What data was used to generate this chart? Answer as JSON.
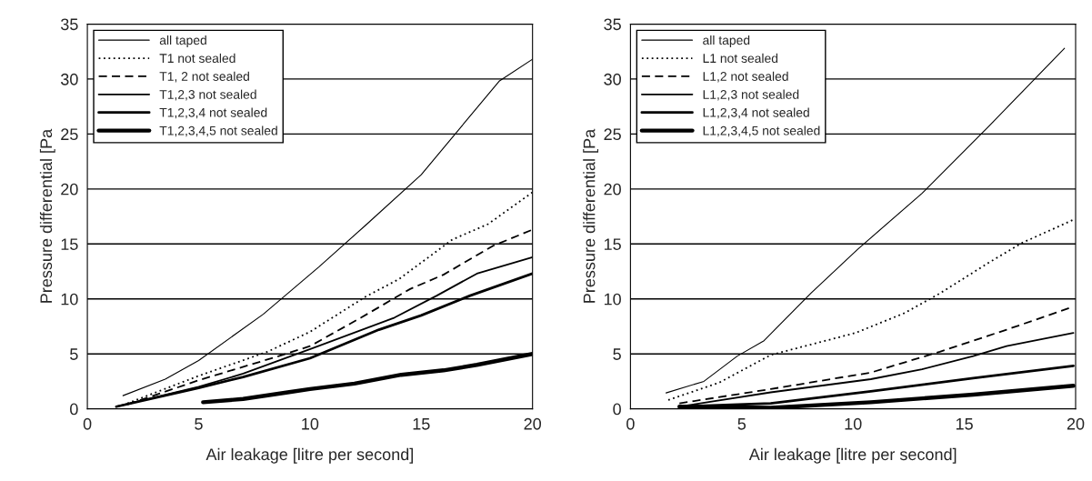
{
  "chart_data": [
    {
      "type": "line",
      "xlabel": "Air leakage [litre per second]",
      "ylabel": "Pressure differential [Pa",
      "xlim": [
        0,
        20
      ],
      "ylim": [
        0,
        35
      ],
      "xticks": [
        0,
        5,
        10,
        15,
        20
      ],
      "yticks": [
        0,
        5,
        10,
        15,
        20,
        25,
        30,
        35
      ],
      "grid": "y",
      "legend": "top left",
      "marker": "none",
      "series": [
        {
          "name": "all taped",
          "color": "#000000",
          "line_style": "solid",
          "x": [
            1.6,
            3.5,
            5,
            7.9,
            10.4,
            12.5,
            15,
            18.5,
            20
          ],
          "values": [
            1.2,
            2.7,
            4.4,
            8.6,
            12.9,
            16.7,
            21.3,
            29.8,
            31.8
          ]
        },
        {
          "name": "T1 not sealed",
          "color": "#000000",
          "line_style": "dotted",
          "x": [
            1.8,
            5,
            8.1,
            10,
            12.5,
            14,
            16.4,
            18,
            20
          ],
          "values": [
            0.5,
            3,
            5.2,
            7,
            10.2,
            11.8,
            15.4,
            16.8,
            19.7
          ]
        },
        {
          "name": "T1, 2 not sealed",
          "color": "#000000",
          "line_style": "dashed",
          "x": [
            1.8,
            5,
            8.6,
            10,
            12.3,
            14.5,
            16,
            18.2,
            20
          ],
          "values": [
            0.4,
            2.6,
            4.8,
            5.7,
            8.3,
            10.9,
            12.2,
            14.8,
            16.3
          ]
        },
        {
          "name": "T1,2,3 not sealed",
          "color": "#000000",
          "line_style": "solid",
          "x": [
            1.3,
            5,
            7,
            10.1,
            13.8,
            15.7,
            17.5,
            20
          ],
          "values": [
            0.2,
            2,
            3.2,
            5.5,
            8.3,
            10.3,
            12.3,
            13.8
          ]
        },
        {
          "name": "T1,2,3,4 not sealed",
          "color": "#000000",
          "line_style": "solid",
          "x": [
            1.3,
            5,
            7,
            10,
            13.1,
            15,
            17.2,
            20
          ],
          "values": [
            0.2,
            1.9,
            2.9,
            4.6,
            7.2,
            8.5,
            10.3,
            12.3
          ]
        },
        {
          "name": "T1,2,3,4,5 not sealed",
          "color": "#000000",
          "line_style": "solid",
          "x": [
            5.2,
            7,
            9,
            10,
            12,
            14.1,
            16,
            17.5,
            20
          ],
          "values": [
            0.6,
            0.9,
            1.5,
            1.8,
            2.3,
            3.1,
            3.5,
            4,
            5
          ]
        }
      ]
    },
    {
      "type": "line",
      "xlabel": "Air leakage [litre per second]",
      "ylabel": "Pressure differential [Pa",
      "xlim": [
        0,
        20
      ],
      "ylim": [
        0,
        35
      ],
      "xticks": [
        0,
        5,
        10,
        15,
        20
      ],
      "yticks": [
        0,
        5,
        10,
        15,
        20,
        25,
        30,
        35
      ],
      "grid": "y",
      "legend": "top left",
      "marker": "none",
      "series": [
        {
          "name": "all taped",
          "color": "#000000",
          "line_style": "solid",
          "x": [
            1.6,
            3.3,
            4.8,
            6,
            8.1,
            10.2,
            13.1,
            16.1,
            19.5
          ],
          "values": [
            1.45,
            2.5,
            4.8,
            6.2,
            10.5,
            14.5,
            19.6,
            25.7,
            32.8
          ]
        },
        {
          "name": "L1 not sealed",
          "color": "#000000",
          "line_style": "dotted",
          "x": [
            1.7,
            4,
            6.3,
            10.1,
            12.3,
            13.9,
            16.1,
            17.6,
            19.9
          ],
          "values": [
            0.8,
            2.4,
            4.9,
            6.9,
            8.7,
            10.5,
            13.3,
            15.1,
            17.2
          ]
        },
        {
          "name": "L1,2 not sealed",
          "color": "#000000",
          "line_style": "dashed",
          "x": [
            2.2,
            6.3,
            10.8,
            13.9,
            16.9,
            19.9
          ],
          "values": [
            0.5,
            1.8,
            3.3,
            5.2,
            7.2,
            9.3
          ]
        },
        {
          "name": "L1,2,3 not sealed",
          "color": "#000000",
          "line_style": "solid",
          "x": [
            2.2,
            6.3,
            10.8,
            13.1,
            15.4,
            16.9,
            19.9
          ],
          "values": [
            0.2,
            1.5,
            2.7,
            3.6,
            4.8,
            5.7,
            6.9
          ]
        },
        {
          "name": "L1,2,3,4 not sealed",
          "color": "#000000",
          "line_style": "solid",
          "x": [
            2.2,
            6.3,
            10.8,
            15.4,
            19.9
          ],
          "values": [
            0.2,
            0.5,
            1.6,
            2.8,
            3.9
          ]
        },
        {
          "name": "L1,2,3,4,5 not sealed",
          "color": "#000000",
          "line_style": "solid",
          "x": [
            2.2,
            6.3,
            10.8,
            15.4,
            19.9
          ],
          "values": [
            0.2,
            0.1,
            0.6,
            1.3,
            2.1
          ]
        }
      ]
    }
  ]
}
